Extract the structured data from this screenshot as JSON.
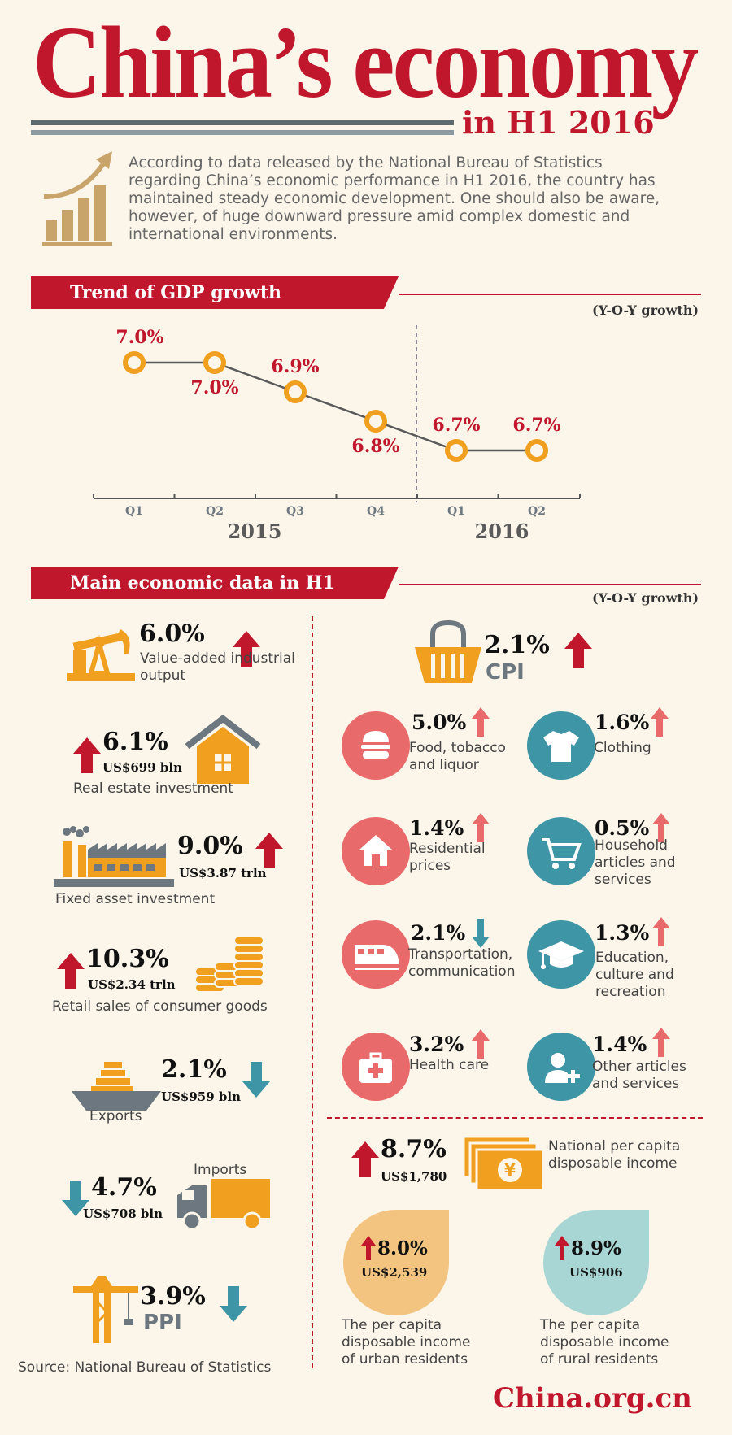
{
  "header": {
    "title": "China’s economy",
    "subtitle": "in H1 2016",
    "intro": "According to data released by the National Bureau of Statistics regarding China’s economic performance in H1 2016, the country has maintained steady economic development. One should also be aware, however, of huge downward pressure amid complex domestic and international environments."
  },
  "gdp_section": {
    "title": "Trend of GDP growth",
    "unit": "(Y-O-Y growth)"
  },
  "chart_data": {
    "type": "line",
    "title": "Trend of GDP growth",
    "categories": [
      "Q1",
      "Q2",
      "Q3",
      "Q4",
      "Q1",
      "Q2"
    ],
    "year_groups": [
      "2015",
      "2016"
    ],
    "values": [
      7.0,
      7.0,
      6.9,
      6.8,
      6.7,
      6.7
    ],
    "value_labels": [
      "7.0%",
      "7.0%",
      "6.9%",
      "6.8%",
      "6.7%",
      "6.7%"
    ],
    "ylabel": "Y-O-Y growth",
    "ylim": [
      6.6,
      7.1
    ]
  },
  "main_section": {
    "title": "Main economic data in H1",
    "unit": "(Y-O-Y growth)"
  },
  "left_items": {
    "industrial": {
      "value": "6.0%",
      "label": "Value-added industrial output"
    },
    "realestate": {
      "value": "6.1%",
      "amount": "US$699 bln",
      "label": "Real estate investment"
    },
    "fixed": {
      "value": "9.0%",
      "amount": "US$3.87 trln",
      "label": "Fixed asset investment"
    },
    "retail": {
      "value": "10.3%",
      "amount": "US$2.34 trln",
      "label": "Retail sales of consumer goods"
    },
    "exports": {
      "value": "2.1%",
      "amount": "US$959 bln",
      "label": "Exports"
    },
    "imports": {
      "value": "4.7%",
      "amount": "US$708 bln",
      "label": "Imports"
    },
    "ppi": {
      "value": "3.9%",
      "label": "PPI"
    }
  },
  "cpi": {
    "value": "2.1%",
    "label": "CPI",
    "items": [
      {
        "value": "5.0%",
        "label": "Food, tobacco and liquor"
      },
      {
        "value": "1.6%",
        "label": "Clothing"
      },
      {
        "value": "1.4%",
        "label": "Residential prices"
      },
      {
        "value": "0.5%",
        "label": "Household articles and services"
      },
      {
        "value": "2.1%",
        "label": "Transportation, communication"
      },
      {
        "value": "1.3%",
        "label": "Education, culture and recreation"
      },
      {
        "value": "3.2%",
        "label": "Health care"
      },
      {
        "value": "1.4%",
        "label": "Other articles and services"
      }
    ]
  },
  "income": {
    "national": {
      "value": "8.7%",
      "amount": "US$1,780",
      "label": "National per capita disposable income"
    },
    "currency_symbol": "¥",
    "urban": {
      "value": "8.0%",
      "amount": "US$2,539",
      "label": "The per capita disposable income of urban residents"
    },
    "rural": {
      "value": "8.9%",
      "amount": "US$906",
      "label": "The per capita disposable income of rural residents"
    }
  },
  "footer": {
    "source": "Source: National Bureau of Statistics",
    "brand": "China.org.cn"
  },
  "colors": {
    "red": "#c0172d",
    "orange": "#f0a01e",
    "teal": "#3e95a5",
    "pink": "#e86a6a",
    "gray": "#6d7780"
  }
}
